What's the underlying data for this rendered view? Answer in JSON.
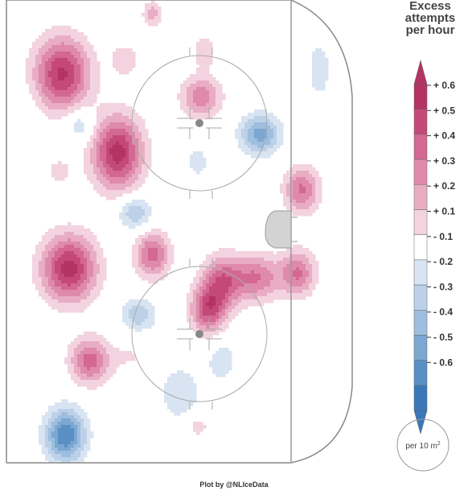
{
  "chart_data": {
    "type": "heatmap",
    "title": "",
    "legend": {
      "title_lines": [
        "Excess",
        "attempts",
        "per hour"
      ],
      "ticks": [
        "+ 0.6",
        "+ 0.5",
        "+ 0.4",
        "+ 0.3",
        "+ 0.2",
        "+ 0.1",
        "- 0.1",
        "- 0.2",
        "- 0.3",
        "- 0.4",
        "- 0.5",
        "- 0.6"
      ],
      "scale_circle_label": "per 10 m",
      "scale_circle_superscript": "2"
    },
    "range": [
      -0.6,
      0.6
    ],
    "colors": {
      "pos": [
        "#f3d3df",
        "#e9adc3",
        "#df8aab",
        "#d36893",
        "#c44979",
        "#b33363"
      ],
      "neg": [
        "#d8e4f1",
        "#bcd1e8",
        "#9dbedf",
        "#7ca7d1",
        "#5a8fc4",
        "#3a78b8"
      ],
      "rink_line": "#999999"
    },
    "hotspots": [
      {
        "x": 0.16,
        "y": 0.16,
        "value": 0.62,
        "sx": 0.055,
        "sy": 0.055
      },
      {
        "x": 0.34,
        "y": 0.13,
        "value": 0.18,
        "sx": 0.03,
        "sy": 0.025
      },
      {
        "x": 0.57,
        "y": 0.11,
        "value": 0.15,
        "sx": 0.03,
        "sy": 0.03
      },
      {
        "x": 0.56,
        "y": 0.21,
        "value": 0.38,
        "sx": 0.04,
        "sy": 0.03
      },
      {
        "x": 0.73,
        "y": 0.29,
        "value": -0.45,
        "sx": 0.04,
        "sy": 0.03
      },
      {
        "x": 0.32,
        "y": 0.33,
        "value": 0.65,
        "sx": 0.05,
        "sy": 0.055
      },
      {
        "x": 0.15,
        "y": 0.37,
        "value": 0.12,
        "sx": 0.04,
        "sy": 0.03
      },
      {
        "x": 0.21,
        "y": 0.27,
        "value": -0.22,
        "sx": 0.03,
        "sy": 0.025
      },
      {
        "x": 0.55,
        "y": 0.35,
        "value": -0.15,
        "sx": 0.025,
        "sy": 0.025
      },
      {
        "x": 0.85,
        "y": 0.41,
        "value": 0.42,
        "sx": 0.035,
        "sy": 0.035
      },
      {
        "x": 0.37,
        "y": 0.46,
        "value": -0.3,
        "sx": 0.035,
        "sy": 0.025
      },
      {
        "x": 0.18,
        "y": 0.58,
        "value": 0.65,
        "sx": 0.055,
        "sy": 0.05
      },
      {
        "x": 0.42,
        "y": 0.55,
        "value": 0.45,
        "sx": 0.035,
        "sy": 0.035
      },
      {
        "x": 0.62,
        "y": 0.61,
        "value": 0.45,
        "sx": 0.04,
        "sy": 0.04
      },
      {
        "x": 0.72,
        "y": 0.6,
        "value": 0.4,
        "sx": 0.05,
        "sy": 0.035
      },
      {
        "x": 0.84,
        "y": 0.59,
        "value": 0.4,
        "sx": 0.035,
        "sy": 0.035
      },
      {
        "x": 0.58,
        "y": 0.67,
        "value": 0.5,
        "sx": 0.035,
        "sy": 0.035
      },
      {
        "x": 0.38,
        "y": 0.68,
        "value": -0.28,
        "sx": 0.035,
        "sy": 0.025
      },
      {
        "x": 0.24,
        "y": 0.78,
        "value": 0.45,
        "sx": 0.04,
        "sy": 0.035
      },
      {
        "x": 0.36,
        "y": 0.77,
        "value": 0.1,
        "sx": 0.04,
        "sy": 0.03
      },
      {
        "x": 0.5,
        "y": 0.85,
        "value": -0.2,
        "sx": 0.04,
        "sy": 0.04
      },
      {
        "x": 0.17,
        "y": 0.94,
        "value": -0.6,
        "sx": 0.04,
        "sy": 0.04
      },
      {
        "x": 0.55,
        "y": 0.92,
        "value": 0.15,
        "sx": 0.025,
        "sy": 0.02
      },
      {
        "x": 0.8,
        "y": 0.82,
        "value": -0.1,
        "sx": 0.05,
        "sy": 0.05
      },
      {
        "x": 0.9,
        "y": 0.15,
        "value": -0.12,
        "sx": 0.04,
        "sy": 0.08
      },
      {
        "x": 0.62,
        "y": 0.78,
        "value": -0.18,
        "sx": 0.03,
        "sy": 0.03
      },
      {
        "x": 0.05,
        "y": 0.29,
        "value": -0.1,
        "sx": 0.03,
        "sy": 0.05
      },
      {
        "x": 0.42,
        "y": 0.03,
        "value": 0.25,
        "sx": 0.02,
        "sy": 0.02
      }
    ]
  },
  "credit": "Plot by @NLIceData"
}
